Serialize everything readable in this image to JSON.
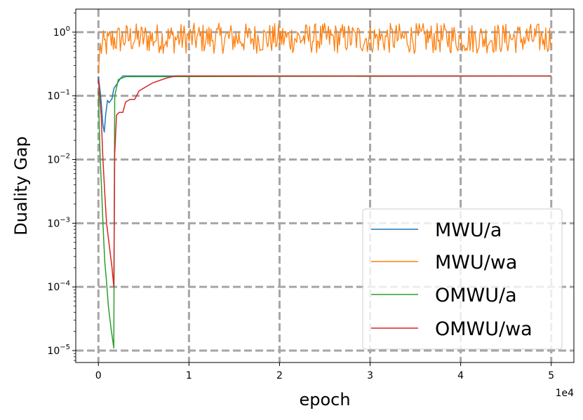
{
  "chart_data": {
    "type": "line",
    "xlabel": "epoch",
    "ylabel": "Duality Gap",
    "x_offset_text": "1e4",
    "yscale": "log",
    "xlim": [
      -2500,
      52500
    ],
    "ylim": [
      6.5e-06,
      2.3
    ],
    "x_ticks": [
      {
        "value": 0,
        "label": "0"
      },
      {
        "value": 10000,
        "label": "1"
      },
      {
        "value": 20000,
        "label": "2"
      },
      {
        "value": 30000,
        "label": "3"
      },
      {
        "value": 40000,
        "label": "4"
      },
      {
        "value": 50000,
        "label": "5"
      }
    ],
    "y_ticks": [
      {
        "value": 1e-05,
        "base": "10",
        "exp": "−5"
      },
      {
        "value": 0.0001,
        "base": "10",
        "exp": "−4"
      },
      {
        "value": 0.001,
        "base": "10",
        "exp": "−3"
      },
      {
        "value": 0.01,
        "base": "10",
        "exp": "−2"
      },
      {
        "value": 0.1,
        "base": "10",
        "exp": "−1"
      },
      {
        "value": 1,
        "base": "10",
        "exp": "0"
      }
    ],
    "grid": true,
    "legend_position": "lower-right",
    "series": [
      {
        "name": "MWU/a",
        "color": "#1f77b4",
        "points": [
          [
            0,
            0.2
          ],
          [
            250,
            0.1
          ],
          [
            500,
            0.035
          ],
          [
            650,
            0.027
          ],
          [
            800,
            0.05
          ],
          [
            1000,
            0.085
          ],
          [
            1200,
            0.078
          ],
          [
            1500,
            0.09
          ],
          [
            1700,
            0.13
          ],
          [
            2000,
            0.15
          ],
          [
            2400,
            0.185
          ],
          [
            2700,
            0.205
          ],
          [
            5000,
            0.205
          ],
          [
            10000,
            0.205
          ],
          [
            50000,
            0.205
          ]
        ]
      },
      {
        "name": "MWU/wa",
        "color": "#ff7f0e",
        "noisy": true,
        "points": [
          [
            0,
            0.22
          ],
          [
            150,
            0.55
          ],
          [
            500,
            0.6
          ],
          [
            1500,
            0.75
          ],
          [
            3000,
            0.8
          ],
          [
            10000,
            0.8
          ],
          [
            30000,
            0.8
          ],
          [
            50000,
            0.8
          ]
        ]
      },
      {
        "name": "OMWU/a",
        "color": "#2ca02c",
        "points": [
          [
            0,
            0.12
          ],
          [
            100,
            0.03
          ],
          [
            200,
            0.01
          ],
          [
            350,
            0.0035
          ],
          [
            500,
            0.001
          ],
          [
            700,
            0.00025
          ],
          [
            900,
            0.00012
          ],
          [
            1100,
            5e-05
          ],
          [
            1400,
            2.2e-05
          ],
          [
            1700,
            1.1e-05
          ],
          [
            1800,
            0.1
          ],
          [
            2200,
            0.18
          ],
          [
            3000,
            0.2
          ],
          [
            50000,
            0.205
          ]
        ]
      },
      {
        "name": "OMWU/wa",
        "color": "#d62728",
        "points": [
          [
            0,
            0.18
          ],
          [
            300,
            0.05
          ],
          [
            500,
            0.01
          ],
          [
            700,
            0.003
          ],
          [
            900,
            0.001
          ],
          [
            1200,
            0.00045
          ],
          [
            1500,
            0.0002
          ],
          [
            1700,
            0.0001
          ],
          [
            1800,
            0.012
          ],
          [
            2000,
            0.05
          ],
          [
            2300,
            0.055
          ],
          [
            2700,
            0.055
          ],
          [
            3000,
            0.08
          ],
          [
            3500,
            0.088
          ],
          [
            4000,
            0.088
          ],
          [
            4500,
            0.12
          ],
          [
            6000,
            0.16
          ],
          [
            7500,
            0.19
          ],
          [
            8500,
            0.205
          ],
          [
            10000,
            0.205
          ],
          [
            50000,
            0.205
          ]
        ]
      }
    ]
  }
}
